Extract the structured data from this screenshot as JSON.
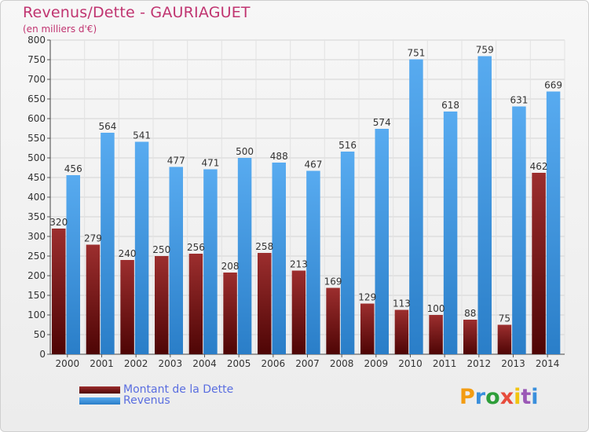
{
  "chart_data": {
    "type": "bar",
    "title": "Revenus/Dette - GAURIAGUET",
    "subtitle": "(en milliers d'€)",
    "categories": [
      "2000",
      "2001",
      "2002",
      "2003",
      "2004",
      "2005",
      "2006",
      "2007",
      "2008",
      "2009",
      "2010",
      "2011",
      "2012",
      "2013",
      "2014"
    ],
    "series": [
      {
        "name": "Montant de la Dette",
        "color": "#7a1414",
        "values": [
          320,
          279,
          240,
          250,
          256,
          208,
          258,
          213,
          169,
          129,
          113,
          100,
          88,
          75,
          462
        ]
      },
      {
        "name": "Revenus",
        "color": "#3f96e0",
        "values": [
          456,
          564,
          541,
          477,
          471,
          500,
          488,
          467,
          516,
          574,
          751,
          618,
          759,
          631,
          669
        ]
      }
    ],
    "ylim": [
      0,
      800
    ],
    "yticks": [
      0,
      50,
      100,
      150,
      200,
      250,
      300,
      350,
      400,
      450,
      500,
      550,
      600,
      650,
      700,
      750,
      800
    ],
    "grid": true,
    "legend": "bottom-left"
  },
  "logo": {
    "letters": [
      "P",
      "r",
      "o",
      "x",
      "i",
      "t",
      "i"
    ],
    "colors": [
      "#f39c12",
      "#3a8fdc",
      "#2e9e3a",
      "#e74c3c",
      "#f1c40f",
      "#9b59b6",
      "#3a8fdc"
    ]
  }
}
